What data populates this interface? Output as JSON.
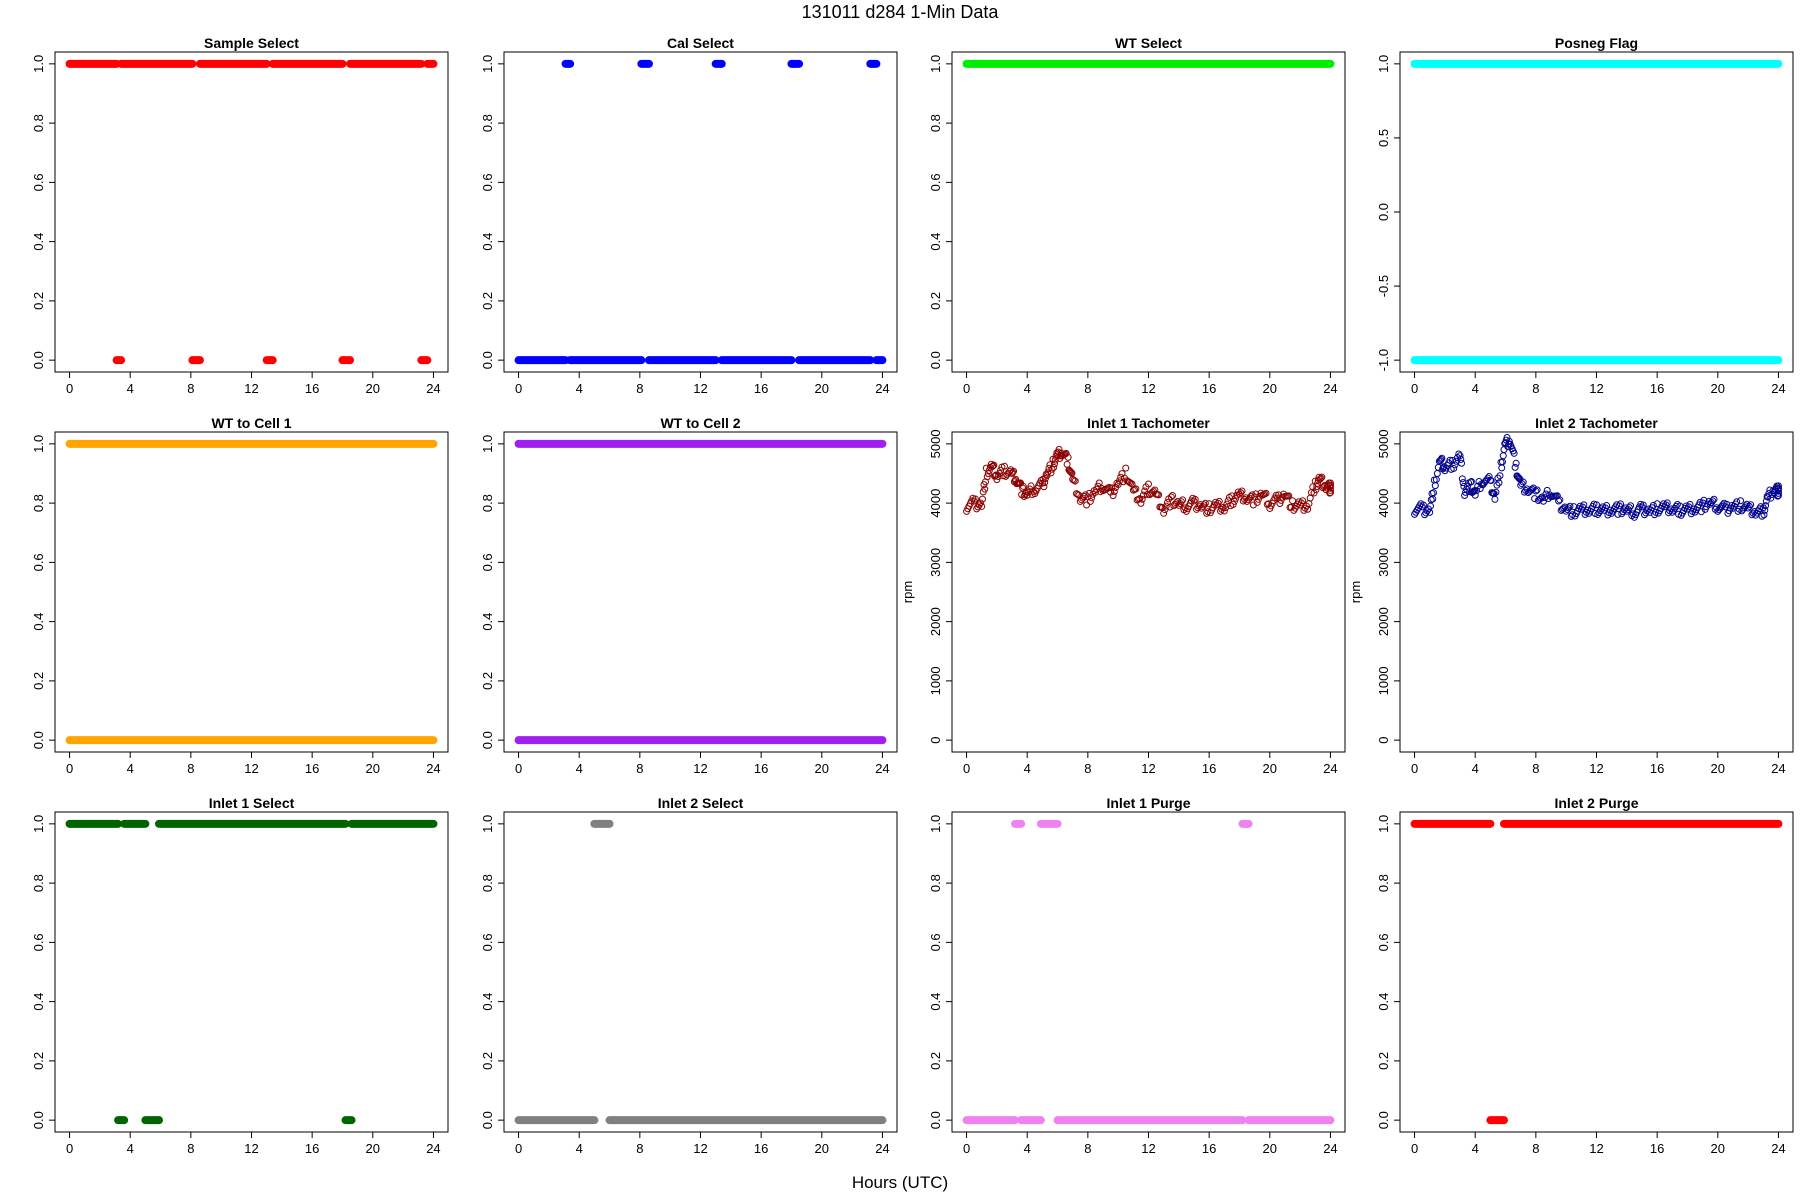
{
  "figure": {
    "title": "131011    d284    1-Min Data",
    "xlabel": "Hours (UTC)"
  },
  "chart_data": [
    {
      "type": "scatter",
      "title": "Sample Select",
      "ylabel": "",
      "color": "#ff0000",
      "marker": "filled",
      "xlim": [
        0,
        24
      ],
      "ylim": [
        0,
        1
      ],
      "xticks": [
        0,
        4,
        8,
        12,
        16,
        20,
        24
      ],
      "yticks": [
        0,
        0.2,
        0.4,
        0.6,
        0.8,
        1.0
      ],
      "ytick_labels": [
        "0.0",
        "0.2",
        "0.4",
        "0.6",
        "0.8",
        "1.0"
      ],
      "segments": [
        {
          "y": 1,
          "x": [
            [
              0,
              3.1
            ],
            [
              3.4,
              8.1
            ],
            [
              8.6,
              13.0
            ],
            [
              13.4,
              18.0
            ],
            [
              18.5,
              23.2
            ],
            [
              23.6,
              24
            ]
          ]
        },
        {
          "y": 0,
          "x": [
            [
              3.1,
              3.4
            ],
            [
              8.1,
              8.6
            ],
            [
              13.0,
              13.4
            ],
            [
              18.0,
              18.5
            ],
            [
              23.2,
              23.6
            ]
          ]
        }
      ]
    },
    {
      "type": "scatter",
      "title": "Cal Select",
      "ylabel": "",
      "color": "#0000ff",
      "marker": "filled",
      "xlim": [
        0,
        24
      ],
      "ylim": [
        0,
        1
      ],
      "xticks": [
        0,
        4,
        8,
        12,
        16,
        20,
        24
      ],
      "yticks": [
        0,
        0.2,
        0.4,
        0.6,
        0.8,
        1.0
      ],
      "ytick_labels": [
        "0.0",
        "0.2",
        "0.4",
        "0.6",
        "0.8",
        "1.0"
      ],
      "segments": [
        {
          "y": 1,
          "x": [
            [
              3.1,
              3.4
            ],
            [
              8.1,
              8.6
            ],
            [
              13.0,
              13.4
            ],
            [
              18.0,
              18.5
            ],
            [
              23.2,
              23.6
            ]
          ]
        },
        {
          "y": 0,
          "x": [
            [
              0,
              3.1
            ],
            [
              3.4,
              8.1
            ],
            [
              8.6,
              13.0
            ],
            [
              13.4,
              18.0
            ],
            [
              18.5,
              23.2
            ],
            [
              23.6,
              24
            ]
          ]
        }
      ]
    },
    {
      "type": "scatter",
      "title": "WT Select",
      "ylabel": "",
      "color": "#00ee00",
      "marker": "filled",
      "xlim": [
        0,
        24
      ],
      "ylim": [
        0,
        1
      ],
      "xticks": [
        0,
        4,
        8,
        12,
        16,
        20,
        24
      ],
      "yticks": [
        0,
        0.2,
        0.4,
        0.6,
        0.8,
        1.0
      ],
      "ytick_labels": [
        "0.0",
        "0.2",
        "0.4",
        "0.6",
        "0.8",
        "1.0"
      ],
      "segments": [
        {
          "y": 1,
          "x": [
            [
              0,
              24
            ]
          ]
        }
      ]
    },
    {
      "type": "scatter",
      "title": "Posneg Flag",
      "ylabel": "",
      "color": "#00ffff",
      "marker": "filled",
      "xlim": [
        0,
        24
      ],
      "ylim": [
        -1,
        1
      ],
      "xticks": [
        0,
        4,
        8,
        12,
        16,
        20,
        24
      ],
      "yticks": [
        -1,
        -0.5,
        0,
        0.5,
        1.0
      ],
      "ytick_labels": [
        "-1.0",
        "-0.5",
        "0.0",
        "0.5",
        "1.0"
      ],
      "segments": [
        {
          "y": 1,
          "x": [
            [
              0,
              24
            ]
          ]
        },
        {
          "y": -1,
          "x": [
            [
              0,
              24
            ]
          ]
        }
      ]
    },
    {
      "type": "scatter",
      "title": "WT to Cell 1",
      "ylabel": "",
      "color": "#ffa500",
      "marker": "filled",
      "xlim": [
        0,
        24
      ],
      "ylim": [
        0,
        1
      ],
      "xticks": [
        0,
        4,
        8,
        12,
        16,
        20,
        24
      ],
      "yticks": [
        0,
        0.2,
        0.4,
        0.6,
        0.8,
        1.0
      ],
      "ytick_labels": [
        "0.0",
        "0.2",
        "0.4",
        "0.6",
        "0.8",
        "1.0"
      ],
      "segments": [
        {
          "y": 1,
          "x": [
            [
              0,
              24
            ]
          ]
        },
        {
          "y": 0,
          "x": [
            [
              0,
              24
            ]
          ]
        }
      ]
    },
    {
      "type": "scatter",
      "title": "WT to Cell 2",
      "ylabel": "",
      "color": "#a020f0",
      "marker": "filled",
      "xlim": [
        0,
        24
      ],
      "ylim": [
        0,
        1
      ],
      "xticks": [
        0,
        4,
        8,
        12,
        16,
        20,
        24
      ],
      "yticks": [
        0,
        0.2,
        0.4,
        0.6,
        0.8,
        1.0
      ],
      "ytick_labels": [
        "0.0",
        "0.2",
        "0.4",
        "0.6",
        "0.8",
        "1.0"
      ],
      "segments": [
        {
          "y": 1,
          "x": [
            [
              0,
              24
            ]
          ]
        },
        {
          "y": 0,
          "x": [
            [
              0,
              24
            ]
          ]
        }
      ]
    },
    {
      "type": "scatter",
      "title": "Inlet 1 Tachometer",
      "ylabel": "rpm",
      "color": "#8b0000",
      "marker": "open",
      "xlim": [
        0,
        24
      ],
      "ylim": [
        0,
        5000
      ],
      "xticks": [
        0,
        4,
        8,
        12,
        16,
        20,
        24
      ],
      "yticks": [
        0,
        1000,
        2000,
        3000,
        4000,
        5000
      ],
      "ytick_labels": [
        "0",
        "1000",
        "2000",
        "3000",
        "4000",
        "5000"
      ],
      "series": [
        {
          "name": "",
          "x": [
            0,
            0.5,
            1,
            1.3,
            1.7,
            2,
            2.5,
            3,
            3.3,
            3.7,
            4,
            4.5,
            5,
            5.3,
            5.7,
            6,
            6.3,
            6.7,
            7,
            7.5,
            8,
            8.5,
            9,
            9.5,
            10,
            10.5,
            11,
            11.5,
            12,
            12.5,
            13,
            13.5,
            14,
            14.5,
            15,
            15.5,
            16,
            16.5,
            17,
            17.5,
            18,
            18.5,
            19,
            19.5,
            20,
            20.5,
            21,
            21.5,
            22,
            22.5,
            23,
            23.3,
            23.7,
            24
          ],
          "y": [
            3950,
            4000,
            3980,
            4500,
            4600,
            4450,
            4550,
            4500,
            4400,
            4200,
            4150,
            4250,
            4300,
            4500,
            4650,
            4800,
            4850,
            4700,
            4400,
            4100,
            4050,
            4200,
            4300,
            4150,
            4350,
            4500,
            4200,
            4050,
            4250,
            4150,
            3900,
            4050,
            3980,
            3950,
            4000,
            3950,
            3900,
            3950,
            3920,
            4050,
            4150,
            4100,
            4050,
            4150,
            4000,
            4050,
            4150,
            3950,
            3950,
            3950,
            4300,
            4400,
            4300,
            4250
          ]
        }
      ]
    },
    {
      "type": "scatter",
      "title": "Inlet 2 Tachometer",
      "ylabel": "rpm",
      "color": "#00008b",
      "marker": "open",
      "xlim": [
        0,
        24
      ],
      "ylim": [
        0,
        5000
      ],
      "xticks": [
        0,
        4,
        8,
        12,
        16,
        20,
        24
      ],
      "yticks": [
        0,
        1000,
        2000,
        3000,
        4000,
        5000
      ],
      "ytick_labels": [
        "0",
        "1000",
        "2000",
        "3000",
        "4000",
        "5000"
      ],
      "series": [
        {
          "name": "",
          "x": [
            0,
            0.5,
            1,
            1.3,
            1.7,
            2,
            2.5,
            3,
            3.3,
            3.7,
            4,
            4.5,
            5,
            5.3,
            5.7,
            6,
            6.3,
            6.7,
            7,
            7.5,
            8,
            8.5,
            9,
            9.5,
            10,
            10.5,
            11,
            11.5,
            12,
            12.5,
            13,
            13.5,
            14,
            14.5,
            15,
            15.5,
            16,
            16.5,
            17,
            17.5,
            18,
            18.5,
            19,
            19.5,
            20,
            20.5,
            21,
            21.5,
            22,
            22.5,
            23,
            23.3,
            23.7,
            24
          ],
          "y": [
            3900,
            3900,
            3880,
            4300,
            4700,
            4600,
            4650,
            4800,
            4200,
            4300,
            4150,
            4400,
            4350,
            4100,
            4600,
            5000,
            5050,
            4600,
            4300,
            4250,
            4150,
            4050,
            4200,
            4000,
            3900,
            3850,
            3880,
            3880,
            3900,
            3880,
            3900,
            3900,
            3880,
            3850,
            3900,
            3880,
            3900,
            3920,
            3900,
            3880,
            3900,
            3920,
            3950,
            4000,
            3950,
            3900,
            3950,
            3950,
            3900,
            3850,
            3850,
            4100,
            4250,
            4200
          ]
        }
      ]
    },
    {
      "type": "scatter",
      "title": "Inlet 1 Select",
      "ylabel": "",
      "color": "#006400",
      "marker": "filled",
      "xlim": [
        0,
        24
      ],
      "ylim": [
        0,
        1
      ],
      "xticks": [
        0,
        4,
        8,
        12,
        16,
        20,
        24
      ],
      "yticks": [
        0,
        0.2,
        0.4,
        0.6,
        0.8,
        1.0
      ],
      "ytick_labels": [
        "0.0",
        "0.2",
        "0.4",
        "0.6",
        "0.8",
        "1.0"
      ],
      "segments": [
        {
          "y": 1,
          "x": [
            [
              0,
              3.2
            ],
            [
              3.6,
              5.0
            ],
            [
              5.9,
              18.2
            ],
            [
              18.6,
              24
            ]
          ]
        },
        {
          "y": 0,
          "x": [
            [
              3.2,
              3.6
            ],
            [
              5.0,
              5.9
            ],
            [
              18.2,
              18.6
            ]
          ]
        }
      ]
    },
    {
      "type": "scatter",
      "title": "Inlet 2 Select",
      "ylabel": "",
      "color": "#808080",
      "marker": "filled",
      "xlim": [
        0,
        24
      ],
      "ylim": [
        0,
        1
      ],
      "xticks": [
        0,
        4,
        8,
        12,
        16,
        20,
        24
      ],
      "yticks": [
        0,
        0.2,
        0.4,
        0.6,
        0.8,
        1.0
      ],
      "ytick_labels": [
        "0.0",
        "0.2",
        "0.4",
        "0.6",
        "0.8",
        "1.0"
      ],
      "segments": [
        {
          "y": 1,
          "x": [
            [
              5.0,
              6.0
            ]
          ]
        },
        {
          "y": 0,
          "x": [
            [
              0,
              5.0
            ],
            [
              6.0,
              24
            ]
          ]
        }
      ]
    },
    {
      "type": "scatter",
      "title": "Inlet 1 Purge",
      "ylabel": "",
      "color": "#ee82ee",
      "marker": "filled",
      "xlim": [
        0,
        24
      ],
      "ylim": [
        0,
        1
      ],
      "xticks": [
        0,
        4,
        8,
        12,
        16,
        20,
        24
      ],
      "yticks": [
        0,
        0.2,
        0.4,
        0.6,
        0.8,
        1.0
      ],
      "ytick_labels": [
        "0.0",
        "0.2",
        "0.4",
        "0.6",
        "0.8",
        "1.0"
      ],
      "segments": [
        {
          "y": 1,
          "x": [
            [
              3.2,
              3.6
            ],
            [
              4.9,
              6.0
            ],
            [
              18.2,
              18.6
            ]
          ]
        },
        {
          "y": 0,
          "x": [
            [
              0,
              3.2
            ],
            [
              3.6,
              4.9
            ],
            [
              6.0,
              18.2
            ],
            [
              18.6,
              24
            ]
          ]
        }
      ]
    },
    {
      "type": "scatter",
      "title": "Inlet 2 Purge",
      "ylabel": "",
      "color": "#ff0000",
      "marker": "filled",
      "xlim": [
        0,
        24
      ],
      "ylim": [
        0,
        1
      ],
      "xticks": [
        0,
        4,
        8,
        12,
        16,
        20,
        24
      ],
      "yticks": [
        0,
        0.2,
        0.4,
        0.6,
        0.8,
        1.0
      ],
      "ytick_labels": [
        "0.0",
        "0.2",
        "0.4",
        "0.6",
        "0.8",
        "1.0"
      ],
      "segments": [
        {
          "y": 1,
          "x": [
            [
              0,
              5.0
            ],
            [
              5.9,
              24
            ]
          ]
        },
        {
          "y": 0,
          "x": [
            [
              5.0,
              5.9
            ]
          ]
        }
      ]
    }
  ]
}
